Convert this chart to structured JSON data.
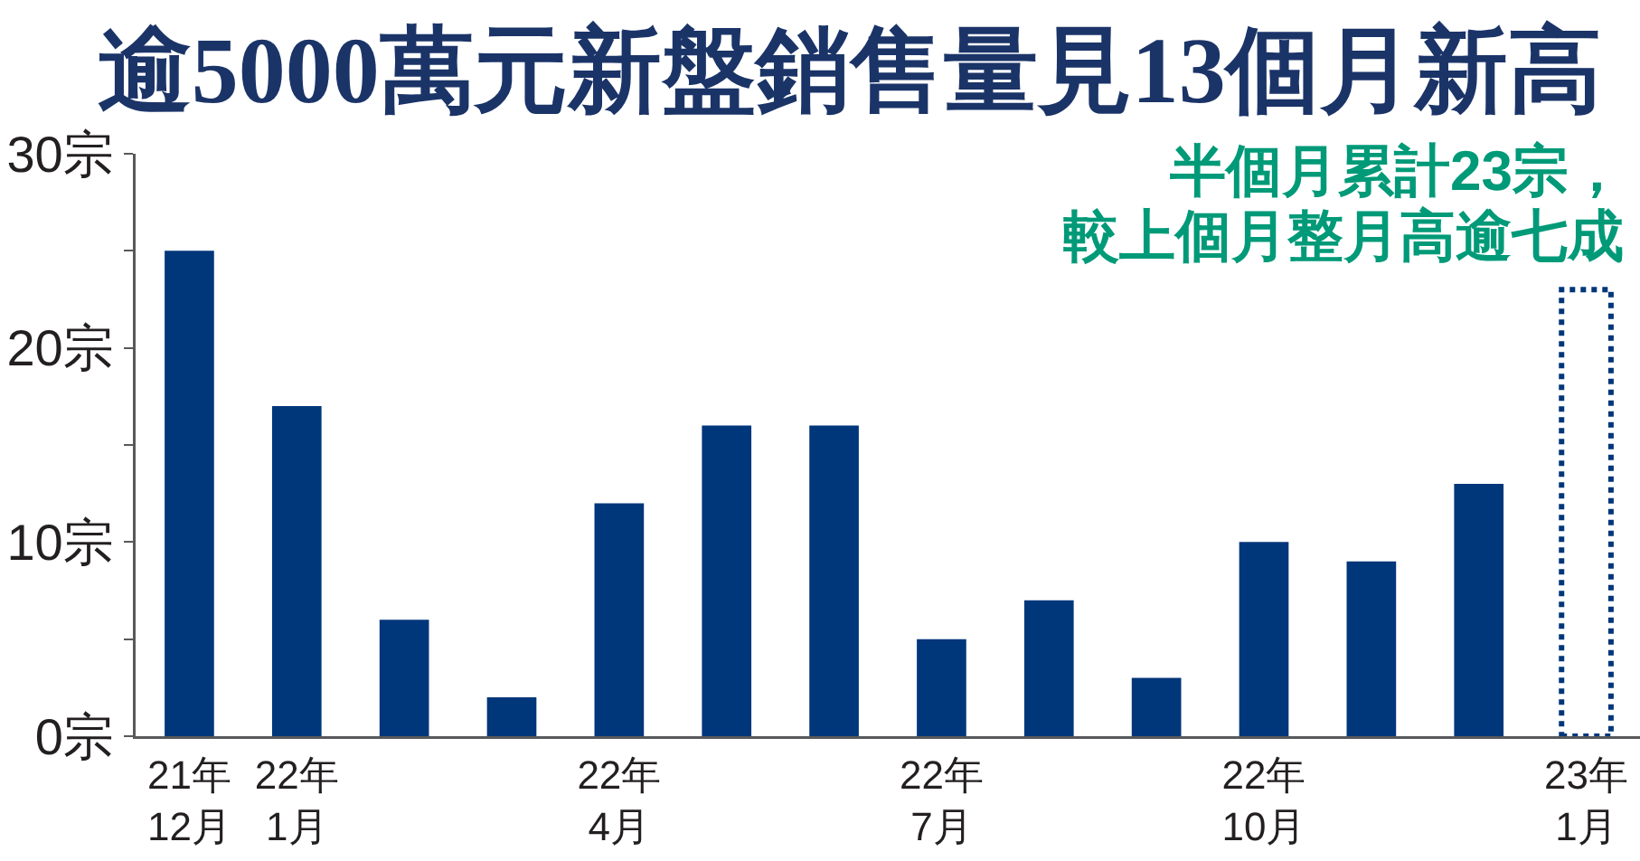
{
  "chart_data": {
    "type": "bar",
    "title": "逾5000萬元新盤銷售量見13個月新高",
    "categories": [
      "21年\n12月",
      "22年\n1月",
      null,
      null,
      "22年\n4月",
      null,
      null,
      "22年\n7月",
      null,
      null,
      "22年\n10月",
      null,
      null,
      "23年\n1月"
    ],
    "series": [
      {
        "color": "#00367a",
        "values": [
          25,
          17,
          6,
          2,
          12,
          16,
          16,
          5,
          7,
          3,
          10,
          9,
          13,
          null
        ]
      },
      {
        "color": "#00367a",
        "line_style": "dotted",
        "values": [
          null,
          null,
          null,
          null,
          null,
          null,
          null,
          null,
          null,
          null,
          null,
          null,
          null,
          23
        ]
      }
    ],
    "ylim": [
      0,
      30
    ],
    "yticks": [
      {
        "value": 0,
        "label": "0宗"
      },
      {
        "value": 5,
        "label": null
      },
      {
        "value": 10,
        "label": "10宗"
      },
      {
        "value": 15,
        "label": null
      },
      {
        "value": 20,
        "label": "20宗"
      },
      {
        "value": 25,
        "label": null
      },
      {
        "value": 30,
        "label": "30宗"
      }
    ],
    "annotations": [
      "半個月累計23宗，",
      "較上個月整月高逾七成"
    ]
  }
}
